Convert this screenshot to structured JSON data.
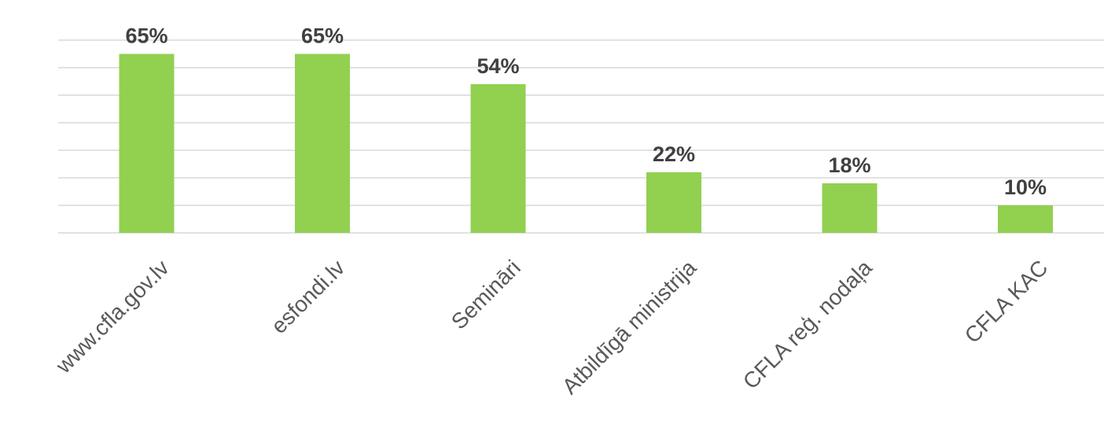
{
  "chart_data": {
    "type": "bar",
    "title": "",
    "xlabel": "",
    "ylabel": "",
    "categories": [
      "www.cfla.gov.lv",
      "esfondi.lv",
      "Semināri",
      "Atbildīgā ministrija",
      "CFLA reģ. nodaļa",
      "CFLA KAC"
    ],
    "values": [
      65,
      65,
      54,
      22,
      18,
      10
    ],
    "value_labels": [
      "65%",
      "65%",
      "54%",
      "22%",
      "18%",
      "10%"
    ],
    "ylim": [
      0,
      70
    ],
    "y_tick_step": 10,
    "grid": true,
    "legend": "none",
    "bar_color": "#92d050",
    "label_color": "#404040",
    "category_color": "#595959",
    "grid_color": "#d9d9d9"
  }
}
